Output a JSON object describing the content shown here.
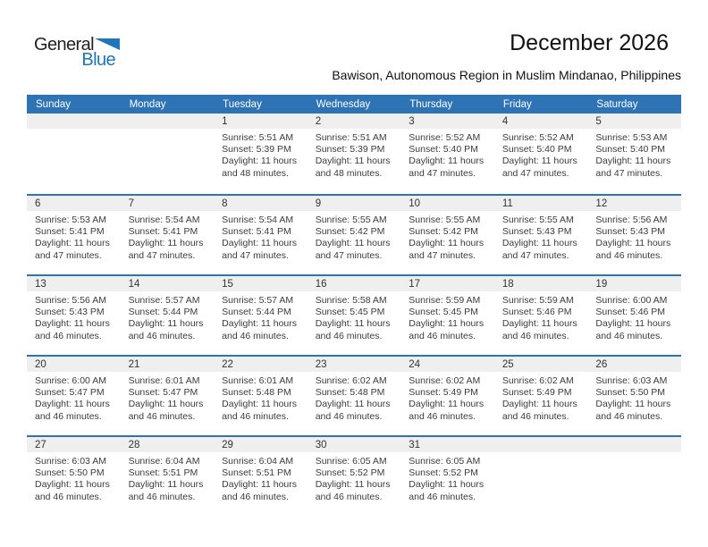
{
  "logo": {
    "general": "General",
    "blue": "Blue"
  },
  "header": {
    "title": "December 2026",
    "subtitle": "Bawison, Autonomous Region in Muslim Mindanao, Philippines"
  },
  "colors": {
    "header_blue": "#2E74B5",
    "week_line_blue": "#2E74B5",
    "day_strip_gray": "#EFEFEF",
    "logo_blue": "#2076BC",
    "logo_dark": "#231F20"
  },
  "calendar": {
    "day_headers": [
      "Sunday",
      "Monday",
      "Tuesday",
      "Wednesday",
      "Thursday",
      "Friday",
      "Saturday"
    ],
    "weeks": [
      {
        "days": [
          null,
          null,
          {
            "n": "1",
            "sunrise": "Sunrise: 5:51 AM",
            "sunset": "Sunset: 5:39 PM",
            "daylight_line1": "Daylight: 11 hours",
            "daylight_line2": "and 48 minutes."
          },
          {
            "n": "2",
            "sunrise": "Sunrise: 5:51 AM",
            "sunset": "Sunset: 5:39 PM",
            "daylight_line1": "Daylight: 11 hours",
            "daylight_line2": "and 48 minutes."
          },
          {
            "n": "3",
            "sunrise": "Sunrise: 5:52 AM",
            "sunset": "Sunset: 5:40 PM",
            "daylight_line1": "Daylight: 11 hours",
            "daylight_line2": "and 47 minutes."
          },
          {
            "n": "4",
            "sunrise": "Sunrise: 5:52 AM",
            "sunset": "Sunset: 5:40 PM",
            "daylight_line1": "Daylight: 11 hours",
            "daylight_line2": "and 47 minutes."
          },
          {
            "n": "5",
            "sunrise": "Sunrise: 5:53 AM",
            "sunset": "Sunset: 5:40 PM",
            "daylight_line1": "Daylight: 11 hours",
            "daylight_line2": "and 47 minutes."
          }
        ]
      },
      {
        "days": [
          {
            "n": "6",
            "sunrise": "Sunrise: 5:53 AM",
            "sunset": "Sunset: 5:41 PM",
            "daylight_line1": "Daylight: 11 hours",
            "daylight_line2": "and 47 minutes."
          },
          {
            "n": "7",
            "sunrise": "Sunrise: 5:54 AM",
            "sunset": "Sunset: 5:41 PM",
            "daylight_line1": "Daylight: 11 hours",
            "daylight_line2": "and 47 minutes."
          },
          {
            "n": "8",
            "sunrise": "Sunrise: 5:54 AM",
            "sunset": "Sunset: 5:41 PM",
            "daylight_line1": "Daylight: 11 hours",
            "daylight_line2": "and 47 minutes."
          },
          {
            "n": "9",
            "sunrise": "Sunrise: 5:55 AM",
            "sunset": "Sunset: 5:42 PM",
            "daylight_line1": "Daylight: 11 hours",
            "daylight_line2": "and 47 minutes."
          },
          {
            "n": "10",
            "sunrise": "Sunrise: 5:55 AM",
            "sunset": "Sunset: 5:42 PM",
            "daylight_line1": "Daylight: 11 hours",
            "daylight_line2": "and 47 minutes."
          },
          {
            "n": "11",
            "sunrise": "Sunrise: 5:55 AM",
            "sunset": "Sunset: 5:43 PM",
            "daylight_line1": "Daylight: 11 hours",
            "daylight_line2": "and 47 minutes."
          },
          {
            "n": "12",
            "sunrise": "Sunrise: 5:56 AM",
            "sunset": "Sunset: 5:43 PM",
            "daylight_line1": "Daylight: 11 hours",
            "daylight_line2": "and 46 minutes."
          }
        ]
      },
      {
        "days": [
          {
            "n": "13",
            "sunrise": "Sunrise: 5:56 AM",
            "sunset": "Sunset: 5:43 PM",
            "daylight_line1": "Daylight: 11 hours",
            "daylight_line2": "and 46 minutes."
          },
          {
            "n": "14",
            "sunrise": "Sunrise: 5:57 AM",
            "sunset": "Sunset: 5:44 PM",
            "daylight_line1": "Daylight: 11 hours",
            "daylight_line2": "and 46 minutes."
          },
          {
            "n": "15",
            "sunrise": "Sunrise: 5:57 AM",
            "sunset": "Sunset: 5:44 PM",
            "daylight_line1": "Daylight: 11 hours",
            "daylight_line2": "and 46 minutes."
          },
          {
            "n": "16",
            "sunrise": "Sunrise: 5:58 AM",
            "sunset": "Sunset: 5:45 PM",
            "daylight_line1": "Daylight: 11 hours",
            "daylight_line2": "and 46 minutes."
          },
          {
            "n": "17",
            "sunrise": "Sunrise: 5:59 AM",
            "sunset": "Sunset: 5:45 PM",
            "daylight_line1": "Daylight: 11 hours",
            "daylight_line2": "and 46 minutes."
          },
          {
            "n": "18",
            "sunrise": "Sunrise: 5:59 AM",
            "sunset": "Sunset: 5:46 PM",
            "daylight_line1": "Daylight: 11 hours",
            "daylight_line2": "and 46 minutes."
          },
          {
            "n": "19",
            "sunrise": "Sunrise: 6:00 AM",
            "sunset": "Sunset: 5:46 PM",
            "daylight_line1": "Daylight: 11 hours",
            "daylight_line2": "and 46 minutes."
          }
        ]
      },
      {
        "days": [
          {
            "n": "20",
            "sunrise": "Sunrise: 6:00 AM",
            "sunset": "Sunset: 5:47 PM",
            "daylight_line1": "Daylight: 11 hours",
            "daylight_line2": "and 46 minutes."
          },
          {
            "n": "21",
            "sunrise": "Sunrise: 6:01 AM",
            "sunset": "Sunset: 5:47 PM",
            "daylight_line1": "Daylight: 11 hours",
            "daylight_line2": "and 46 minutes."
          },
          {
            "n": "22",
            "sunrise": "Sunrise: 6:01 AM",
            "sunset": "Sunset: 5:48 PM",
            "daylight_line1": "Daylight: 11 hours",
            "daylight_line2": "and 46 minutes."
          },
          {
            "n": "23",
            "sunrise": "Sunrise: 6:02 AM",
            "sunset": "Sunset: 5:48 PM",
            "daylight_line1": "Daylight: 11 hours",
            "daylight_line2": "and 46 minutes."
          },
          {
            "n": "24",
            "sunrise": "Sunrise: 6:02 AM",
            "sunset": "Sunset: 5:49 PM",
            "daylight_line1": "Daylight: 11 hours",
            "daylight_line2": "and 46 minutes."
          },
          {
            "n": "25",
            "sunrise": "Sunrise: 6:02 AM",
            "sunset": "Sunset: 5:49 PM",
            "daylight_line1": "Daylight: 11 hours",
            "daylight_line2": "and 46 minutes."
          },
          {
            "n": "26",
            "sunrise": "Sunrise: 6:03 AM",
            "sunset": "Sunset: 5:50 PM",
            "daylight_line1": "Daylight: 11 hours",
            "daylight_line2": "and 46 minutes."
          }
        ]
      },
      {
        "days": [
          {
            "n": "27",
            "sunrise": "Sunrise: 6:03 AM",
            "sunset": "Sunset: 5:50 PM",
            "daylight_line1": "Daylight: 11 hours",
            "daylight_line2": "and 46 minutes."
          },
          {
            "n": "28",
            "sunrise": "Sunrise: 6:04 AM",
            "sunset": "Sunset: 5:51 PM",
            "daylight_line1": "Daylight: 11 hours",
            "daylight_line2": "and 46 minutes."
          },
          {
            "n": "29",
            "sunrise": "Sunrise: 6:04 AM",
            "sunset": "Sunset: 5:51 PM",
            "daylight_line1": "Daylight: 11 hours",
            "daylight_line2": "and 46 minutes."
          },
          {
            "n": "30",
            "sunrise": "Sunrise: 6:05 AM",
            "sunset": "Sunset: 5:52 PM",
            "daylight_line1": "Daylight: 11 hours",
            "daylight_line2": "and 46 minutes."
          },
          {
            "n": "31",
            "sunrise": "Sunrise: 6:05 AM",
            "sunset": "Sunset: 5:52 PM",
            "daylight_line1": "Daylight: 11 hours",
            "daylight_line2": "and 46 minutes."
          },
          null,
          null
        ]
      }
    ]
  }
}
